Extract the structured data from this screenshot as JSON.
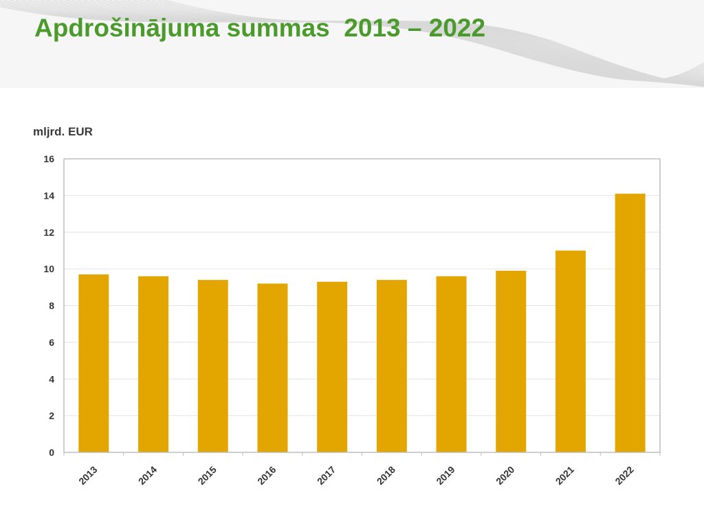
{
  "page": {
    "title": "Apdrošinājuma summas  2013 – 2022"
  },
  "chart_data": {
    "type": "bar",
    "unit_label": "mljrd. EUR",
    "categories": [
      "2013",
      "2014",
      "2015",
      "2016",
      "2017",
      "2018",
      "2019",
      "2020",
      "2021",
      "2022"
    ],
    "values": [
      9.7,
      9.6,
      9.4,
      9.2,
      9.3,
      9.4,
      9.6,
      9.9,
      11.0,
      14.1
    ],
    "yticks": [
      "0",
      "2",
      "4",
      "6",
      "8",
      "10",
      "12",
      "14",
      "16"
    ],
    "ylim": [
      0,
      16
    ],
    "grid": true,
    "legend": "none",
    "colors": {
      "bar": "#e3a500",
      "grid": "#e2e2e2",
      "axis": "#bdbdbd",
      "title": "#4a9a2c"
    }
  }
}
